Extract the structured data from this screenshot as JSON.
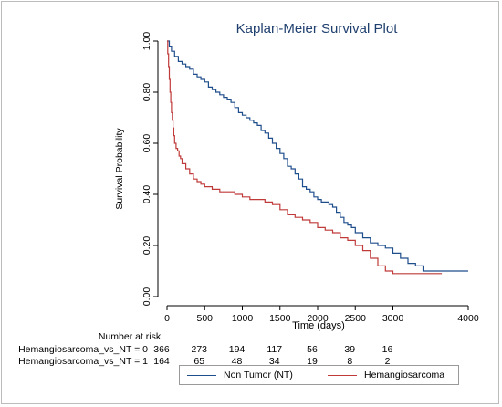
{
  "chart_data": {
    "type": "line",
    "title": "Kaplan-Meier Survival Plot",
    "xlabel": "Time (days)",
    "ylabel": "Survival Probability",
    "xlim": [
      0,
      4000
    ],
    "ylim": [
      0,
      1
    ],
    "x_ticks": [
      "0",
      "500",
      "1000",
      "1500",
      "2000",
      "2500",
      "3000",
      "4000"
    ],
    "x_tick_values": [
      0,
      500,
      1000,
      1500,
      2000,
      2500,
      3000,
      4000
    ],
    "y_ticks": [
      "0.00",
      "0.20",
      "0.40",
      "0.60",
      "0.80",
      "1.00"
    ],
    "y_tick_values": [
      0,
      0.2,
      0.4,
      0.6,
      0.8,
      1.0
    ],
    "grid": false,
    "legend_position": "bottom",
    "series": [
      {
        "name": "Non Tumor (NT)",
        "color": "#1f4e8c",
        "points": [
          [
            0,
            1.0
          ],
          [
            30,
            0.98
          ],
          [
            60,
            0.96
          ],
          [
            100,
            0.94
          ],
          [
            150,
            0.92
          ],
          [
            200,
            0.91
          ],
          [
            250,
            0.9
          ],
          [
            300,
            0.89
          ],
          [
            350,
            0.87
          ],
          [
            400,
            0.86
          ],
          [
            450,
            0.85
          ],
          [
            500,
            0.84
          ],
          [
            550,
            0.82
          ],
          [
            600,
            0.81
          ],
          [
            650,
            0.8
          ],
          [
            700,
            0.79
          ],
          [
            750,
            0.78
          ],
          [
            800,
            0.77
          ],
          [
            850,
            0.76
          ],
          [
            900,
            0.74
          ],
          [
            950,
            0.72
          ],
          [
            1000,
            0.71
          ],
          [
            1050,
            0.7
          ],
          [
            1100,
            0.69
          ],
          [
            1150,
            0.68
          ],
          [
            1200,
            0.67
          ],
          [
            1250,
            0.65
          ],
          [
            1300,
            0.64
          ],
          [
            1350,
            0.62
          ],
          [
            1400,
            0.6
          ],
          [
            1450,
            0.58
          ],
          [
            1500,
            0.56
          ],
          [
            1550,
            0.54
          ],
          [
            1600,
            0.51
          ],
          [
            1650,
            0.5
          ],
          [
            1700,
            0.48
          ],
          [
            1750,
            0.46
          ],
          [
            1800,
            0.43
          ],
          [
            1850,
            0.42
          ],
          [
            1900,
            0.41
          ],
          [
            1950,
            0.39
          ],
          [
            2000,
            0.38
          ],
          [
            2050,
            0.37
          ],
          [
            2100,
            0.37
          ],
          [
            2150,
            0.36
          ],
          [
            2200,
            0.35
          ],
          [
            2250,
            0.33
          ],
          [
            2300,
            0.31
          ],
          [
            2350,
            0.29
          ],
          [
            2400,
            0.28
          ],
          [
            2450,
            0.27
          ],
          [
            2500,
            0.25
          ],
          [
            2600,
            0.23
          ],
          [
            2700,
            0.21
          ],
          [
            2800,
            0.2
          ],
          [
            2900,
            0.19
          ],
          [
            3000,
            0.17
          ],
          [
            3100,
            0.15
          ],
          [
            3200,
            0.13
          ],
          [
            3300,
            0.12
          ],
          [
            3400,
            0.1
          ],
          [
            3500,
            0.1
          ],
          [
            4000,
            0.1
          ]
        ]
      },
      {
        "name": "Hemangiosarcoma",
        "color": "#c03a3a",
        "points": [
          [
            0,
            1.0
          ],
          [
            10,
            0.95
          ],
          [
            20,
            0.9
          ],
          [
            30,
            0.85
          ],
          [
            40,
            0.8
          ],
          [
            50,
            0.76
          ],
          [
            60,
            0.72
          ],
          [
            70,
            0.69
          ],
          [
            80,
            0.66
          ],
          [
            90,
            0.63
          ],
          [
            100,
            0.6
          ],
          [
            120,
            0.58
          ],
          [
            140,
            0.57
          ],
          [
            160,
            0.55
          ],
          [
            180,
            0.54
          ],
          [
            200,
            0.52
          ],
          [
            250,
            0.5
          ],
          [
            300,
            0.48
          ],
          [
            350,
            0.46
          ],
          [
            400,
            0.45
          ],
          [
            450,
            0.44
          ],
          [
            500,
            0.43
          ],
          [
            600,
            0.42
          ],
          [
            700,
            0.41
          ],
          [
            800,
            0.41
          ],
          [
            900,
            0.4
          ],
          [
            1000,
            0.39
          ],
          [
            1100,
            0.38
          ],
          [
            1200,
            0.38
          ],
          [
            1300,
            0.37
          ],
          [
            1400,
            0.36
          ],
          [
            1500,
            0.34
          ],
          [
            1600,
            0.32
          ],
          [
            1700,
            0.31
          ],
          [
            1800,
            0.3
          ],
          [
            1900,
            0.29
          ],
          [
            2000,
            0.27
          ],
          [
            2100,
            0.26
          ],
          [
            2200,
            0.25
          ],
          [
            2300,
            0.23
          ],
          [
            2400,
            0.22
          ],
          [
            2500,
            0.2
          ],
          [
            2600,
            0.18
          ],
          [
            2700,
            0.15
          ],
          [
            2800,
            0.12
          ],
          [
            2900,
            0.1
          ],
          [
            3000,
            0.09
          ],
          [
            3500,
            0.09
          ],
          [
            3650,
            0.09
          ]
        ]
      }
    ],
    "risk_table": {
      "title": "Number at risk",
      "rows": [
        {
          "label": "Hemangiosarcoma_vs_NT = 0",
          "values": [
            "366",
            "273",
            "194",
            "117",
            "56",
            "39",
            "16"
          ]
        },
        {
          "label": "Hemangiosarcoma_vs_NT = 1",
          "values": [
            "164",
            "65",
            "48",
            "34",
            "19",
            "8",
            "2"
          ]
        }
      ],
      "times": [
        0,
        500,
        1000,
        1500,
        2000,
        2500,
        3000
      ]
    }
  }
}
